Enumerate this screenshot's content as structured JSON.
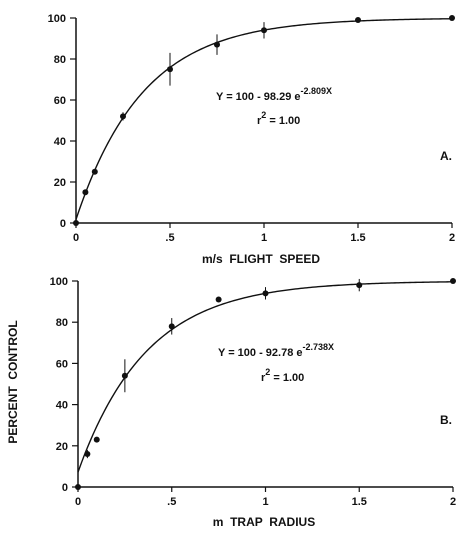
{
  "chart_data": [
    {
      "type": "scatter",
      "panel_label": "A.",
      "xlabel": "m/s  FLIGHT  SPEED",
      "ylabel": "",
      "xlim": [
        0,
        2
      ],
      "ylim": [
        0,
        100
      ],
      "x_ticks": [
        0,
        0.5,
        1,
        1.5,
        2
      ],
      "x_tick_labels": [
        "0",
        ".5",
        "1",
        "1.5",
        "2"
      ],
      "y_ticks": [
        0,
        20,
        40,
        60,
        80,
        100
      ],
      "y_tick_labels": [
        "0",
        "20",
        "40",
        "60",
        "80",
        "100"
      ],
      "points": [
        {
          "x": 0,
          "y": 0,
          "err": 0
        },
        {
          "x": 0.05,
          "y": 15,
          "err": 0
        },
        {
          "x": 0.1,
          "y": 25,
          "err": 0
        },
        {
          "x": 0.25,
          "y": 52,
          "err": 2
        },
        {
          "x": 0.5,
          "y": 75,
          "err": 8
        },
        {
          "x": 0.75,
          "y": 87,
          "err": 5
        },
        {
          "x": 1,
          "y": 94,
          "err": 4
        },
        {
          "x": 1.5,
          "y": 99,
          "err": 0
        },
        {
          "x": 2,
          "y": 100,
          "err": 0
        }
      ],
      "fit": {
        "a": 100,
        "b": 98.29,
        "k": 2.809
      },
      "equation": {
        "main": "Y = 100 - 98.29 e",
        "exponent": "-2.809X"
      },
      "r2": {
        "r": "r",
        "sup": "2",
        "rest": " = 1.00"
      }
    },
    {
      "type": "scatter",
      "panel_label": "B.",
      "xlabel": "m  TRAP  RADIUS",
      "ylabel": "PERCENT  CONTROL",
      "xlim": [
        0,
        2
      ],
      "ylim": [
        0,
        100
      ],
      "x_ticks": [
        0,
        0.5,
        1,
        1.5,
        2
      ],
      "x_tick_labels": [
        "0",
        ".5",
        "1",
        "1.5",
        "2"
      ],
      "y_ticks": [
        0,
        20,
        40,
        60,
        80,
        100
      ],
      "y_tick_labels": [
        "0",
        "20",
        "40",
        "60",
        "80",
        "100"
      ],
      "points": [
        {
          "x": 0,
          "y": 0,
          "err": 0
        },
        {
          "x": 0.05,
          "y": 16,
          "err": 2
        },
        {
          "x": 0.1,
          "y": 23,
          "err": 0
        },
        {
          "x": 0.25,
          "y": 54,
          "err": 8
        },
        {
          "x": 0.5,
          "y": 78,
          "err": 4
        },
        {
          "x": 0.75,
          "y": 91,
          "err": 0
        },
        {
          "x": 1,
          "y": 94,
          "err": 3
        },
        {
          "x": 1.5,
          "y": 98,
          "err": 3
        },
        {
          "x": 2,
          "y": 100,
          "err": 0
        }
      ],
      "fit": {
        "a": 100,
        "b": 92.78,
        "k": 2.738
      },
      "equation": {
        "main": "Y = 100 - 92.78 e",
        "exponent": "-2.738X"
      },
      "r2": {
        "r": "r",
        "sup": "2",
        "rest": " = 1.00"
      }
    }
  ]
}
